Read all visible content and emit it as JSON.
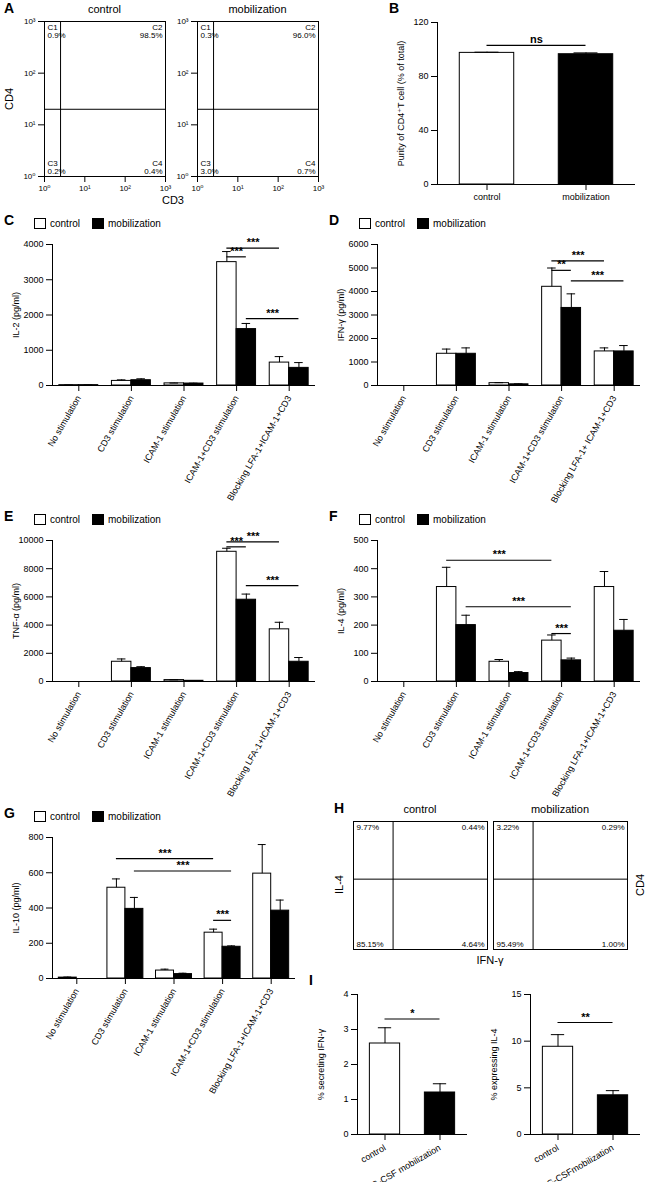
{
  "chart_data": [
    {
      "type": "flow",
      "panel": "A",
      "xlabel": "CD3",
      "ylabel": "CD4",
      "log": true,
      "xlim": [
        1,
        1000
      ],
      "ylim": [
        1,
        1000
      ],
      "xticks": [
        {
          "value": 1,
          "label": "10⁰"
        },
        {
          "value": 10,
          "label": "10¹"
        },
        {
          "value": 100,
          "label": "10²"
        },
        {
          "value": 1000,
          "label": "10³"
        }
      ],
      "yticks": [
        {
          "value": 1,
          "label": "10⁰"
        },
        {
          "value": 10,
          "label": "10¹"
        },
        {
          "value": 100,
          "label": "10²"
        },
        {
          "value": 1000,
          "label": "10³"
        }
      ],
      "gates": {
        "x": 2.5,
        "y": 20
      },
      "plots": [
        {
          "title": "control",
          "quadrants": [
            {
              "name": "C1",
              "position": "upper left",
              "value": 0.9,
              "value_label": "0.9%"
            },
            {
              "name": "C2",
              "position": "upper right",
              "value": 98.5,
              "value_label": "98.5%"
            },
            {
              "name": "C3",
              "position": "lower left",
              "value": 0.2,
              "value_label": "0.2%"
            },
            {
              "name": "C4",
              "position": "lower right",
              "value": 0.4,
              "value_label": "0.4%"
            }
          ]
        },
        {
          "title": "mobilization",
          "quadrants": [
            {
              "name": "C1",
              "position": "upper left",
              "value": 0.3,
              "value_label": "0.3%"
            },
            {
              "name": "C2",
              "position": "upper right",
              "value": 96.0,
              "value_label": "96.0%"
            },
            {
              "name": "C3",
              "position": "lower left",
              "value": 3.0,
              "value_label": "3.0%"
            },
            {
              "name": "C4",
              "position": "lower right",
              "value": 0.7,
              "value_label": "0.7%"
            }
          ]
        }
      ]
    },
    {
      "type": "bar",
      "panel": "B",
      "categories": [
        "control",
        "mobilization"
      ],
      "values": [
        97.5,
        96.5
      ],
      "errors": [
        0.5,
        1.0
      ],
      "colors": [
        "#ffffff",
        "#000000"
      ],
      "ylim": [
        0,
        120
      ],
      "yticks": [
        0,
        40,
        80,
        120
      ],
      "ylabel": "Purity of CD4⁺T cell (% of total)",
      "significance": [
        {
          "from": {
            "category": "control"
          },
          "to": {
            "category": "mobilization"
          },
          "y": 103,
          "label": "ns"
        }
      ]
    },
    {
      "type": "bar",
      "panel": "C",
      "legend": "upper left",
      "categories": [
        "No stimulation",
        "CD3 stimulation",
        "ICAM-1 stimulation",
        "ICAM-1+CD3 stimulation",
        "Blocking LFA-1+ICAM-1+CD3"
      ],
      "ylabel": "IL-2 (pg/ml)",
      "ylim": [
        0,
        4000
      ],
      "yticks": [
        0,
        1000,
        2000,
        3000,
        4000
      ],
      "series": [
        {
          "name": "control",
          "color": "#ffffff",
          "values": [
            10,
            130,
            60,
            3500,
            650
          ],
          "errors": [
            5,
            30,
            10,
            300,
            170
          ]
        },
        {
          "name": "mobilization",
          "color": "#000000",
          "values": [
            10,
            150,
            55,
            1600,
            500
          ],
          "errors": [
            5,
            40,
            10,
            160,
            150
          ]
        }
      ],
      "significance": [
        {
          "from": {
            "category": "ICAM-1+CD3 stimulation",
            "series": "control"
          },
          "to": {
            "category": "Blocking LFA-1+ICAM-1+CD3",
            "series": "control"
          },
          "y": 3900,
          "label": "***"
        },
        {
          "from": {
            "category": "ICAM-1+CD3 stimulation",
            "series": "control"
          },
          "to": {
            "category": "ICAM-1+CD3 stimulation",
            "series": "mobilization"
          },
          "y": 3650,
          "label": "***"
        },
        {
          "from": {
            "category": "ICAM-1+CD3 stimulation",
            "series": "mobilization"
          },
          "to": {
            "category": "Blocking LFA-1+ICAM-1+CD3",
            "series": "mobilization"
          },
          "y": 1900,
          "label": "***"
        }
      ]
    },
    {
      "type": "bar",
      "panel": "D",
      "legend": "upper left",
      "categories": [
        "No stimulation",
        "CD3 stimulation",
        "ICAM-1 stimulation",
        "ICAM-1+CD3 stimulation",
        "Blocking LFA-1+ ICAM-1+CD3"
      ],
      "ylabel": "IFN-γ (pg/ml)",
      "ylim": [
        0,
        6000
      ],
      "yticks": [
        0,
        1000,
        2000,
        3000,
        4000,
        5000,
        6000
      ],
      "series": [
        {
          "name": "control",
          "color": "#ffffff",
          "values": [
            0,
            1350,
            100,
            4200,
            1450
          ],
          "errors": [
            0,
            200,
            20,
            800,
            150
          ]
        },
        {
          "name": "mobilization",
          "color": "#000000",
          "values": [
            0,
            1350,
            50,
            3300,
            1450
          ],
          "errors": [
            0,
            250,
            20,
            600,
            250
          ]
        }
      ],
      "significance": [
        {
          "from": {
            "category": "ICAM-1+CD3 stimulation",
            "series": "control"
          },
          "to": {
            "category": "Blocking LFA-1+ ICAM-1+CD3",
            "series": "control"
          },
          "y": 5300,
          "label": "***"
        },
        {
          "from": {
            "category": "ICAM-1+CD3 stimulation",
            "series": "control"
          },
          "to": {
            "category": "ICAM-1+CD3 stimulation",
            "series": "mobilization"
          },
          "y": 4900,
          "label": "**"
        },
        {
          "from": {
            "category": "ICAM-1+CD3 stimulation",
            "series": "mobilization"
          },
          "to": {
            "category": "Blocking LFA-1+ ICAM-1+CD3",
            "series": "mobilization"
          },
          "y": 4450,
          "label": "***"
        }
      ]
    },
    {
      "type": "bar",
      "panel": "E",
      "legend": "upper left",
      "categories": [
        "No stimulation",
        "CD3 stimulation",
        "ICAM-1 stimulation",
        "ICAM-1+CD3 stimulation",
        "Blocking LFA-1+ICAM-1+CD3"
      ],
      "ylabel": "TNF-α (pg/ml)",
      "ylim": [
        0,
        10000
      ],
      "yticks": [
        0,
        2000,
        4000,
        6000,
        8000,
        10000
      ],
      "series": [
        {
          "name": "control",
          "color": "#ffffff",
          "values": [
            0,
            1400,
            100,
            9200,
            3700
          ],
          "errors": [
            0,
            200,
            20,
            250,
            500
          ]
        },
        {
          "name": "mobilization",
          "color": "#000000",
          "values": [
            0,
            950,
            50,
            5800,
            1400
          ],
          "errors": [
            0,
            100,
            20,
            400,
            300
          ]
        }
      ],
      "significance": [
        {
          "from": {
            "category": "ICAM-1+CD3 stimulation",
            "series": "control"
          },
          "to": {
            "category": "Blocking LFA-1+ICAM-1+CD3",
            "series": "control"
          },
          "y": 9900,
          "label": "***"
        },
        {
          "from": {
            "category": "ICAM-1+CD3 stimulation",
            "series": "control"
          },
          "to": {
            "category": "ICAM-1+CD3 stimulation",
            "series": "mobilization"
          },
          "y": 9550,
          "label": "***"
        },
        {
          "from": {
            "category": "ICAM-1+CD3 stimulation",
            "series": "mobilization"
          },
          "to": {
            "category": "Blocking LFA-1+ICAM-1+CD3",
            "series": "mobilization"
          },
          "y": 6800,
          "label": "***"
        }
      ]
    },
    {
      "type": "bar",
      "panel": "F",
      "legend": "upper left",
      "categories": [
        "No stimulation",
        "CD3 stimulation",
        "ICAM-1 stimulation",
        "ICAM-1+CD3 stimulation",
        "Blocking LFA-1+ICAM-1+CD3"
      ],
      "ylabel": "IL-4 (pg/ml)",
      "ylim": [
        0,
        500
      ],
      "yticks": [
        0,
        100,
        200,
        300,
        400,
        500
      ],
      "series": [
        {
          "name": "control",
          "color": "#ffffff",
          "values": [
            0,
            335,
            70,
            145,
            335
          ],
          "errors": [
            0,
            70,
            8,
            20,
            55
          ]
        },
        {
          "name": "mobilization",
          "color": "#000000",
          "values": [
            0,
            200,
            30,
            75,
            180
          ],
          "errors": [
            0,
            35,
            5,
            8,
            40
          ]
        }
      ],
      "significance": [
        {
          "from": {
            "category": "CD3 stimulation",
            "series": "control"
          },
          "to": {
            "category": "ICAM-1+CD3 stimulation",
            "series": "control"
          },
          "y": 430,
          "label": "***"
        },
        {
          "from": {
            "category": "CD3 stimulation",
            "series": "mobilization"
          },
          "to": {
            "category": "ICAM-1+CD3 stimulation",
            "series": "mobilization"
          },
          "y": 265,
          "label": "***"
        },
        {
          "from": {
            "category": "ICAM-1+CD3 stimulation",
            "series": "control"
          },
          "to": {
            "category": "ICAM-1+CD3 stimulation",
            "series": "mobilization"
          },
          "y": 170,
          "label": "***"
        }
      ]
    },
    {
      "type": "bar",
      "panel": "G",
      "legend": "upper left",
      "categories": [
        "No stimulation",
        "CD3 stimulation",
        "ICAM-1 stimulation",
        "ICAM-1+CD3 stimulation",
        "Blocking LFA-1+ICAM-1+CD3"
      ],
      "ylabel": "IL-10 (pg/ml)",
      "ylim": [
        0,
        800
      ],
      "yticks": [
        0,
        200,
        400,
        600,
        800
      ],
      "series": [
        {
          "name": "control",
          "color": "#ffffff",
          "values": [
            5,
            515,
            45,
            260,
            595
          ],
          "errors": [
            3,
            50,
            8,
            20,
            165
          ]
        },
        {
          "name": "mobilization",
          "color": "#000000",
          "values": [
            0,
            395,
            25,
            180,
            385
          ],
          "errors": [
            0,
            65,
            5,
            5,
            60
          ]
        }
      ],
      "significance": [
        {
          "from": {
            "category": "CD3 stimulation",
            "series": "control"
          },
          "to": {
            "category": "ICAM-1+CD3 stimulation",
            "series": "control"
          },
          "y": 680,
          "label": "***"
        },
        {
          "from": {
            "category": "CD3 stimulation",
            "series": "mobilization"
          },
          "to": {
            "category": "ICAM-1+CD3 stimulation",
            "series": "mobilization"
          },
          "y": 610,
          "label": "***"
        },
        {
          "from": {
            "category": "ICAM-1+CD3 stimulation",
            "series": "control"
          },
          "to": {
            "category": "ICAM-1+CD3 stimulation",
            "series": "mobilization"
          },
          "y": 330,
          "label": "***"
        }
      ]
    },
    {
      "type": "flow",
      "panel": "H",
      "xlabel": "IFN-γ",
      "ylabel": "IL-4",
      "side_label": "CD4",
      "log": true,
      "xlim": [
        0.1,
        10000
      ],
      "ylim": [
        0.1,
        10000
      ],
      "tick_labels": false,
      "gates": {
        "x": 3,
        "y": 56
      },
      "plots": [
        {
          "title": "control",
          "quadrants": [
            {
              "position": "upper left",
              "value": 9.77,
              "value_label": "9.77%"
            },
            {
              "position": "upper right",
              "value": 0.44,
              "value_label": "0.44%"
            },
            {
              "position": "lower left",
              "value": 85.15,
              "value_label": "85.15%"
            },
            {
              "position": "lower right",
              "value": 4.64,
              "value_label": "4.64%"
            }
          ]
        },
        {
          "title": "mobilization",
          "quadrants": [
            {
              "position": "upper left",
              "value": 3.22,
              "value_label": "3.22%"
            },
            {
              "position": "upper right",
              "value": 0.29,
              "value_label": "0.29%"
            },
            {
              "position": "lower left",
              "value": 95.49,
              "value_label": "95.49%"
            },
            {
              "position": "lower right",
              "value": 1.0,
              "value_label": "1.00%"
            }
          ]
        }
      ]
    },
    {
      "type": "bar",
      "panel": "I",
      "categories": [
        "control",
        "G-CSF mobilization"
      ],
      "values": [
        2.6,
        1.2
      ],
      "errors": [
        0.45,
        0.25
      ],
      "colors": [
        "#ffffff",
        "#000000"
      ],
      "ylim": [
        0,
        4
      ],
      "yticks": [
        0,
        1,
        2,
        3,
        4
      ],
      "ylabel": "% secreting IFN-γ",
      "significance": [
        {
          "from": {
            "category": "control"
          },
          "to": {
            "category": "G-CSF mobilization"
          },
          "y": 3.3,
          "label": "*"
        }
      ]
    },
    {
      "type": "bar",
      "categories": [
        "control",
        "G-CSFmobilization"
      ],
      "values": [
        9.4,
        4.2
      ],
      "errors": [
        1.3,
        0.5
      ],
      "colors": [
        "#ffffff",
        "#000000"
      ],
      "ylim": [
        0,
        15
      ],
      "yticks": [
        0,
        5,
        10,
        15
      ],
      "ylabel": "% expressing IL-4",
      "significance": [
        {
          "from": {
            "category": "control"
          },
          "to": {
            "category": "G-CSFmobilization"
          },
          "y": 12,
          "label": "**"
        }
      ]
    }
  ]
}
